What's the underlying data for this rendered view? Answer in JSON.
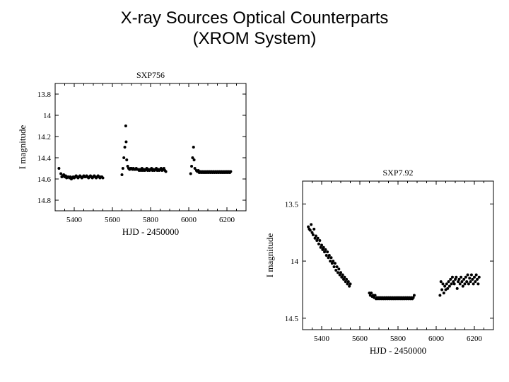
{
  "title_line1": "X-ray Sources Optical Counterparts",
  "title_line2": "(XROM System)",
  "title_fontsize": 24,
  "title_color": "#000000",
  "background_color": "#ffffff",
  "chart1": {
    "type": "scatter",
    "subtitle": "SXP756",
    "subtitle_fontsize": 12,
    "xlabel": "HJD - 2450000",
    "ylabel": "I magnitude",
    "label_fontsize": 13,
    "tick_fontsize": 11,
    "xlim": [
      5300,
      6300
    ],
    "ylim": [
      14.9,
      13.7
    ],
    "xticks": [
      5400,
      5600,
      5800,
      6000,
      6200
    ],
    "yticks": [
      13.8,
      14,
      14.2,
      14.4,
      14.6,
      14.8
    ],
    "marker_color": "#000000",
    "marker_size": 2.0,
    "axis_color": "#000000",
    "ytick_labels": [
      "13.8",
      "14",
      "14.2",
      "14.4",
      "14.6",
      "14.8"
    ],
    "data": [
      [
        5320,
        14.5
      ],
      [
        5330,
        14.55
      ],
      [
        5335,
        14.58
      ],
      [
        5340,
        14.57
      ],
      [
        5345,
        14.56
      ],
      [
        5350,
        14.58
      ],
      [
        5355,
        14.57
      ],
      [
        5360,
        14.59
      ],
      [
        5365,
        14.58
      ],
      [
        5370,
        14.58
      ],
      [
        5375,
        14.59
      ],
      [
        5380,
        14.58
      ],
      [
        5385,
        14.6
      ],
      [
        5390,
        14.59
      ],
      [
        5395,
        14.58
      ],
      [
        5400,
        14.59
      ],
      [
        5405,
        14.58
      ],
      [
        5410,
        14.57
      ],
      [
        5415,
        14.58
      ],
      [
        5420,
        14.59
      ],
      [
        5425,
        14.58
      ],
      [
        5430,
        14.57
      ],
      [
        5435,
        14.58
      ],
      [
        5440,
        14.59
      ],
      [
        5445,
        14.58
      ],
      [
        5450,
        14.57
      ],
      [
        5455,
        14.58
      ],
      [
        5460,
        14.58
      ],
      [
        5465,
        14.57
      ],
      [
        5470,
        14.58
      ],
      [
        5475,
        14.59
      ],
      [
        5480,
        14.58
      ],
      [
        5485,
        14.57
      ],
      [
        5490,
        14.58
      ],
      [
        5495,
        14.59
      ],
      [
        5500,
        14.58
      ],
      [
        5505,
        14.57
      ],
      [
        5510,
        14.58
      ],
      [
        5515,
        14.59
      ],
      [
        5520,
        14.58
      ],
      [
        5525,
        14.57
      ],
      [
        5530,
        14.58
      ],
      [
        5535,
        14.59
      ],
      [
        5540,
        14.58
      ],
      [
        5545,
        14.58
      ],
      [
        5550,
        14.59
      ],
      [
        5650,
        14.56
      ],
      [
        5655,
        14.5
      ],
      [
        5660,
        14.4
      ],
      [
        5665,
        14.3
      ],
      [
        5670,
        14.1
      ],
      [
        5672,
        14.25
      ],
      [
        5675,
        14.42
      ],
      [
        5680,
        14.48
      ],
      [
        5685,
        14.5
      ],
      [
        5690,
        14.51
      ],
      [
        5695,
        14.5
      ],
      [
        5700,
        14.5
      ],
      [
        5705,
        14.51
      ],
      [
        5710,
        14.5
      ],
      [
        5715,
        14.51
      ],
      [
        5720,
        14.51
      ],
      [
        5725,
        14.5
      ],
      [
        5730,
        14.51
      ],
      [
        5735,
        14.51
      ],
      [
        5740,
        14.52
      ],
      [
        5745,
        14.51
      ],
      [
        5750,
        14.52
      ],
      [
        5755,
        14.5
      ],
      [
        5760,
        14.52
      ],
      [
        5765,
        14.51
      ],
      [
        5770,
        14.52
      ],
      [
        5775,
        14.51
      ],
      [
        5780,
        14.5
      ],
      [
        5785,
        14.52
      ],
      [
        5790,
        14.51
      ],
      [
        5795,
        14.52
      ],
      [
        5800,
        14.51
      ],
      [
        5805,
        14.5
      ],
      [
        5810,
        14.52
      ],
      [
        5815,
        14.51
      ],
      [
        5820,
        14.52
      ],
      [
        5825,
        14.51
      ],
      [
        5830,
        14.5
      ],
      [
        5835,
        14.52
      ],
      [
        5840,
        14.51
      ],
      [
        5845,
        14.52
      ],
      [
        5850,
        14.51
      ],
      [
        5855,
        14.5
      ],
      [
        5860,
        14.52
      ],
      [
        5865,
        14.51
      ],
      [
        5870,
        14.5
      ],
      [
        5875,
        14.52
      ],
      [
        5880,
        14.53
      ],
      [
        6010,
        14.55
      ],
      [
        6015,
        14.48
      ],
      [
        6020,
        14.4
      ],
      [
        6025,
        14.3
      ],
      [
        6028,
        14.42
      ],
      [
        6032,
        14.5
      ],
      [
        6040,
        14.52
      ],
      [
        6045,
        14.53
      ],
      [
        6050,
        14.52
      ],
      [
        6055,
        14.54
      ],
      [
        6060,
        14.53
      ],
      [
        6065,
        14.54
      ],
      [
        6070,
        14.53
      ],
      [
        6075,
        14.54
      ],
      [
        6080,
        14.53
      ],
      [
        6085,
        14.54
      ],
      [
        6090,
        14.53
      ],
      [
        6095,
        14.54
      ],
      [
        6100,
        14.53
      ],
      [
        6105,
        14.54
      ],
      [
        6110,
        14.53
      ],
      [
        6115,
        14.54
      ],
      [
        6120,
        14.53
      ],
      [
        6125,
        14.54
      ],
      [
        6130,
        14.53
      ],
      [
        6135,
        14.54
      ],
      [
        6140,
        14.53
      ],
      [
        6145,
        14.54
      ],
      [
        6150,
        14.53
      ],
      [
        6155,
        14.54
      ],
      [
        6160,
        14.53
      ],
      [
        6165,
        14.54
      ],
      [
        6170,
        14.53
      ],
      [
        6175,
        14.54
      ],
      [
        6180,
        14.53
      ],
      [
        6185,
        14.54
      ],
      [
        6190,
        14.53
      ],
      [
        6195,
        14.54
      ],
      [
        6200,
        14.53
      ],
      [
        6205,
        14.54
      ],
      [
        6210,
        14.53
      ],
      [
        6215,
        14.54
      ],
      [
        6220,
        14.53
      ]
    ]
  },
  "chart2": {
    "type": "scatter",
    "subtitle": "SXP7.92",
    "subtitle_fontsize": 12,
    "xlabel": "HJD - 2450000",
    "ylabel": "I magnitude",
    "label_fontsize": 13,
    "tick_fontsize": 11,
    "xlim": [
      5300,
      6300
    ],
    "ylim": [
      14.6,
      13.3
    ],
    "xticks": [
      5400,
      5600,
      5800,
      6000,
      6200
    ],
    "yticks": [
      13.5,
      14,
      14.5
    ],
    "ytick_labels": [
      "13.5",
      "14",
      "14.5"
    ],
    "marker_color": "#000000",
    "marker_size": 2.0,
    "axis_color": "#000000",
    "data": [
      [
        5330,
        13.7
      ],
      [
        5335,
        13.72
      ],
      [
        5340,
        13.73
      ],
      [
        5345,
        13.68
      ],
      [
        5350,
        13.75
      ],
      [
        5355,
        13.77
      ],
      [
        5360,
        13.72
      ],
      [
        5365,
        13.8
      ],
      [
        5370,
        13.78
      ],
      [
        5375,
        13.82
      ],
      [
        5380,
        13.8
      ],
      [
        5385,
        13.85
      ],
      [
        5390,
        13.82
      ],
      [
        5395,
        13.88
      ],
      [
        5400,
        13.86
      ],
      [
        5405,
        13.9
      ],
      [
        5410,
        13.88
      ],
      [
        5415,
        13.92
      ],
      [
        5420,
        13.9
      ],
      [
        5425,
        13.95
      ],
      [
        5430,
        13.92
      ],
      [
        5435,
        13.97
      ],
      [
        5440,
        13.95
      ],
      [
        5445,
        14.0
      ],
      [
        5450,
        13.97
      ],
      [
        5455,
        14.02
      ],
      [
        5460,
        14.0
      ],
      [
        5465,
        14.05
      ],
      [
        5470,
        14.02
      ],
      [
        5475,
        14.08
      ],
      [
        5480,
        14.05
      ],
      [
        5485,
        14.1
      ],
      [
        5490,
        14.07
      ],
      [
        5495,
        14.12
      ],
      [
        5500,
        14.1
      ],
      [
        5505,
        14.14
      ],
      [
        5510,
        14.12
      ],
      [
        5515,
        14.16
      ],
      [
        5520,
        14.14
      ],
      [
        5525,
        14.18
      ],
      [
        5530,
        14.16
      ],
      [
        5535,
        14.2
      ],
      [
        5540,
        14.18
      ],
      [
        5545,
        14.22
      ],
      [
        5550,
        14.2
      ],
      [
        5650,
        14.28
      ],
      [
        5655,
        14.3
      ],
      [
        5660,
        14.28
      ],
      [
        5665,
        14.31
      ],
      [
        5670,
        14.3
      ],
      [
        5675,
        14.32
      ],
      [
        5680,
        14.3
      ],
      [
        5685,
        14.33
      ],
      [
        5690,
        14.32
      ],
      [
        5695,
        14.33
      ],
      [
        5700,
        14.32
      ],
      [
        5705,
        14.33
      ],
      [
        5710,
        14.32
      ],
      [
        5715,
        14.33
      ],
      [
        5720,
        14.32
      ],
      [
        5725,
        14.33
      ],
      [
        5730,
        14.32
      ],
      [
        5735,
        14.33
      ],
      [
        5740,
        14.32
      ],
      [
        5745,
        14.33
      ],
      [
        5750,
        14.32
      ],
      [
        5755,
        14.33
      ],
      [
        5760,
        14.32
      ],
      [
        5765,
        14.33
      ],
      [
        5770,
        14.32
      ],
      [
        5775,
        14.33
      ],
      [
        5780,
        14.32
      ],
      [
        5785,
        14.33
      ],
      [
        5790,
        14.32
      ],
      [
        5795,
        14.33
      ],
      [
        5800,
        14.32
      ],
      [
        5805,
        14.33
      ],
      [
        5810,
        14.32
      ],
      [
        5815,
        14.33
      ],
      [
        5820,
        14.32
      ],
      [
        5825,
        14.33
      ],
      [
        5830,
        14.32
      ],
      [
        5835,
        14.33
      ],
      [
        5840,
        14.32
      ],
      [
        5845,
        14.33
      ],
      [
        5850,
        14.32
      ],
      [
        5855,
        14.33
      ],
      [
        5860,
        14.32
      ],
      [
        5865,
        14.33
      ],
      [
        5870,
        14.32
      ],
      [
        5875,
        14.33
      ],
      [
        5880,
        14.32
      ],
      [
        5885,
        14.3
      ],
      [
        6020,
        14.3
      ],
      [
        6025,
        14.18
      ],
      [
        6030,
        14.25
      ],
      [
        6035,
        14.2
      ],
      [
        6040,
        14.28
      ],
      [
        6045,
        14.22
      ],
      [
        6050,
        14.25
      ],
      [
        6055,
        14.2
      ],
      [
        6060,
        14.24
      ],
      [
        6065,
        14.18
      ],
      [
        6070,
        14.22
      ],
      [
        6075,
        14.16
      ],
      [
        6080,
        14.2
      ],
      [
        6085,
        14.14
      ],
      [
        6090,
        14.18
      ],
      [
        6095,
        14.2
      ],
      [
        6100,
        14.16
      ],
      [
        6105,
        14.14
      ],
      [
        6110,
        14.24
      ],
      [
        6115,
        14.18
      ],
      [
        6120,
        14.16
      ],
      [
        6125,
        14.2
      ],
      [
        6130,
        14.14
      ],
      [
        6135,
        14.18
      ],
      [
        6140,
        14.22
      ],
      [
        6145,
        14.16
      ],
      [
        6150,
        14.2
      ],
      [
        6155,
        14.14
      ],
      [
        6160,
        14.18
      ],
      [
        6165,
        14.12
      ],
      [
        6170,
        14.2
      ],
      [
        6175,
        14.15
      ],
      [
        6180,
        14.18
      ],
      [
        6185,
        14.12
      ],
      [
        6190,
        14.16
      ],
      [
        6195,
        14.2
      ],
      [
        6200,
        14.14
      ],
      [
        6205,
        14.18
      ],
      [
        6210,
        14.12
      ],
      [
        6215,
        14.16
      ],
      [
        6220,
        14.2
      ],
      [
        6225,
        14.14
      ]
    ]
  }
}
